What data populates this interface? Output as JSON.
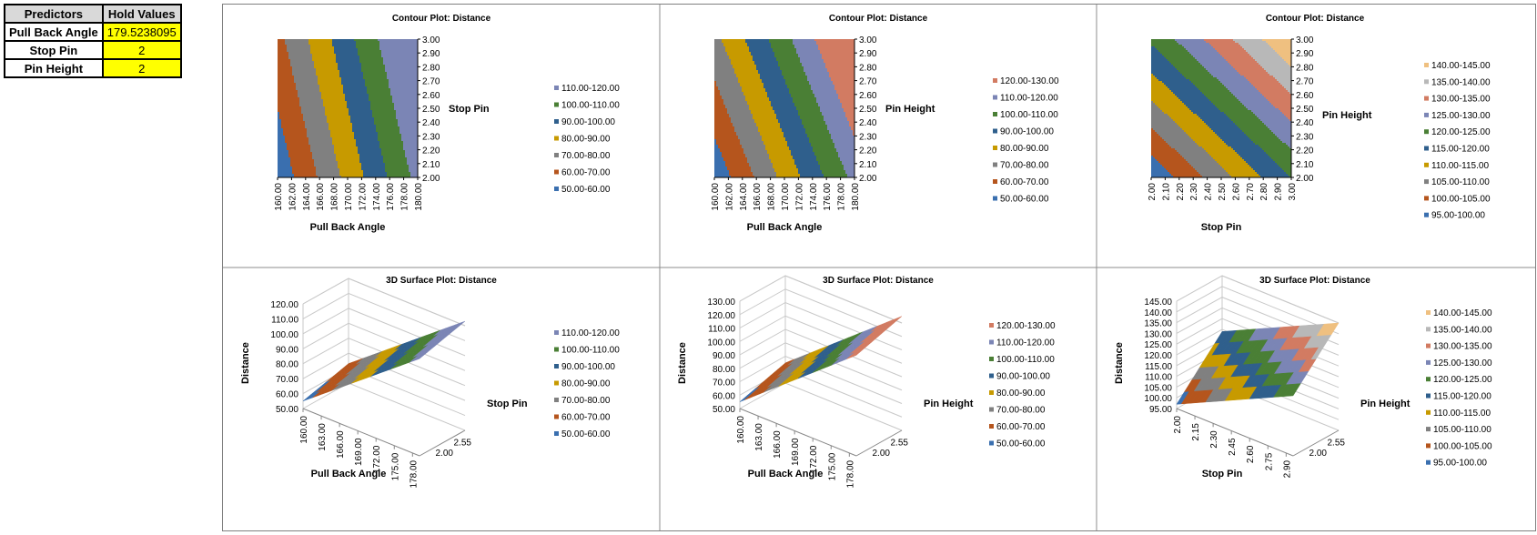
{
  "hold_table": {
    "headers": [
      "Predictors",
      "Hold Values"
    ],
    "rows": [
      {
        "name": "Pull Back Angle",
        "value": "179.5238095"
      },
      {
        "name": "Stop Pin",
        "value": "2"
      },
      {
        "name": "Pin Height",
        "value": "2"
      }
    ]
  },
  "colors": {
    "band_blue": "#3a6faf",
    "band_orange": "#b5551d",
    "band_gray": "#808080",
    "band_gold": "#c79a00",
    "band_teal": "#2f5f8c",
    "band_green": "#4a7f35",
    "band_lilac": "#7b85b5",
    "band_salmon": "#d27b62",
    "band_light": "#efc080",
    "band_silver": "#b8b8b8"
  },
  "chart_data": [
    {
      "type": "heatmap",
      "title": "Contour Plot: Distance",
      "xlabel": "Pull Back Angle",
      "ylabel": "Stop Pin",
      "x_ticks": [
        "160.00",
        "162.00",
        "164.00",
        "166.00",
        "168.00",
        "170.00",
        "172.00",
        "174.00",
        "176.00",
        "178.00",
        "180.00"
      ],
      "y_ticks": [
        "2.00",
        "2.10",
        "2.20",
        "2.30",
        "2.40",
        "2.50",
        "2.60",
        "2.70",
        "2.80",
        "2.90",
        "3.00"
      ],
      "xlim": [
        160,
        180
      ],
      "ylim": [
        2,
        3
      ],
      "legend": [
        "110.00-120.00",
        "100.00-110.00",
        "90.00-100.00",
        "80.00-90.00",
        "70.00-80.00",
        "60.00-70.00",
        "50.00-60.00"
      ],
      "band_colors": [
        "#7b85b5",
        "#4a7f35",
        "#2f5f8c",
        "#c79a00",
        "#808080",
        "#b5551d",
        "#3a6faf"
      ]
    },
    {
      "type": "heatmap",
      "title": "Contour Plot: Distance",
      "xlabel": "Pull Back Angle",
      "ylabel": "Pin Height",
      "x_ticks": [
        "160.00",
        "162.00",
        "164.00",
        "166.00",
        "168.00",
        "170.00",
        "172.00",
        "174.00",
        "176.00",
        "178.00",
        "180.00"
      ],
      "y_ticks": [
        "2.00",
        "2.10",
        "2.20",
        "2.30",
        "2.40",
        "2.50",
        "2.60",
        "2.70",
        "2.80",
        "2.90",
        "3.00"
      ],
      "xlim": [
        160,
        180
      ],
      "ylim": [
        2,
        3
      ],
      "legend": [
        "120.00-130.00",
        "110.00-120.00",
        "100.00-110.00",
        "90.00-100.00",
        "80.00-90.00",
        "70.00-80.00",
        "60.00-70.00",
        "50.00-60.00"
      ],
      "band_colors": [
        "#d27b62",
        "#7b85b5",
        "#4a7f35",
        "#2f5f8c",
        "#c79a00",
        "#808080",
        "#b5551d",
        "#3a6faf"
      ]
    },
    {
      "type": "heatmap",
      "title": "Contour Plot: Distance",
      "xlabel": "Stop Pin",
      "ylabel": "Pin Height",
      "x_ticks": [
        "2.00",
        "2.10",
        "2.20",
        "2.30",
        "2.40",
        "2.50",
        "2.60",
        "2.70",
        "2.80",
        "2.90",
        "3.00"
      ],
      "y_ticks": [
        "2.00",
        "2.10",
        "2.20",
        "2.30",
        "2.40",
        "2.50",
        "2.60",
        "2.70",
        "2.80",
        "2.90",
        "3.00"
      ],
      "xlim": [
        2,
        3
      ],
      "ylim": [
        2,
        3
      ],
      "legend": [
        "140.00-145.00",
        "135.00-140.00",
        "130.00-135.00",
        "125.00-130.00",
        "120.00-125.00",
        "115.00-120.00",
        "110.00-115.00",
        "105.00-110.00",
        "100.00-105.00",
        "95.00-100.00"
      ],
      "band_colors": [
        "#efc080",
        "#b8b8b8",
        "#d27b62",
        "#7b85b5",
        "#4a7f35",
        "#2f5f8c",
        "#c79a00",
        "#808080",
        "#b5551d",
        "#3a6faf"
      ]
    },
    {
      "type": "area",
      "title": "3D Surface Plot: Distance",
      "xlabel": "Pull Back Angle",
      "ylabel": "Stop Pin",
      "zlabel": "Distance",
      "x_ticks": [
        "160.00",
        "163.00",
        "166.00",
        "169.00",
        "172.00",
        "175.00",
        "178.00"
      ],
      "y_ticks": [
        "2.00",
        "2.55"
      ],
      "z_ticks": [
        "50.00",
        "60.00",
        "70.00",
        "80.00",
        "90.00",
        "100.00",
        "110.00",
        "120.00"
      ],
      "zlim": [
        50,
        120
      ],
      "legend": [
        "110.00-120.00",
        "100.00-110.00",
        "90.00-100.00",
        "80.00-90.00",
        "70.00-80.00",
        "60.00-70.00",
        "50.00-60.00"
      ],
      "band_colors": [
        "#7b85b5",
        "#4a7f35",
        "#2f5f8c",
        "#c79a00",
        "#808080",
        "#b5551d",
        "#3a6faf"
      ]
    },
    {
      "type": "area",
      "title": "3D Surface Plot: Distance",
      "xlabel": "Pull Back Angle",
      "ylabel": "Pin Height",
      "zlabel": "Distance",
      "x_ticks": [
        "160.00",
        "163.00",
        "166.00",
        "169.00",
        "172.00",
        "175.00",
        "178.00"
      ],
      "y_ticks": [
        "2.00",
        "2.55"
      ],
      "z_ticks": [
        "50.00",
        "60.00",
        "70.00",
        "80.00",
        "90.00",
        "100.00",
        "110.00",
        "120.00",
        "130.00"
      ],
      "zlim": [
        50,
        130
      ],
      "legend": [
        "120.00-130.00",
        "110.00-120.00",
        "100.00-110.00",
        "90.00-100.00",
        "80.00-90.00",
        "70.00-80.00",
        "60.00-70.00",
        "50.00-60.00"
      ],
      "band_colors": [
        "#d27b62",
        "#7b85b5",
        "#4a7f35",
        "#2f5f8c",
        "#c79a00",
        "#808080",
        "#b5551d",
        "#3a6faf"
      ]
    },
    {
      "type": "area",
      "title": "3D Surface Plot: Distance",
      "xlabel": "Stop Pin",
      "ylabel": "Pin Height",
      "zlabel": "Distance",
      "x_ticks": [
        "2.00",
        "2.15",
        "2.30",
        "2.45",
        "2.60",
        "2.75",
        "2.90"
      ],
      "y_ticks": [
        "2.00",
        "2.55"
      ],
      "z_ticks": [
        "95.00",
        "100.00",
        "105.00",
        "110.00",
        "115.00",
        "120.00",
        "125.00",
        "130.00",
        "135.00",
        "140.00",
        "145.00"
      ],
      "zlim": [
        95,
        145
      ],
      "legend": [
        "140.00-145.00",
        "135.00-140.00",
        "130.00-135.00",
        "125.00-130.00",
        "120.00-125.00",
        "115.00-120.00",
        "110.00-115.00",
        "105.00-110.00",
        "100.00-105.00",
        "95.00-100.00"
      ],
      "band_colors": [
        "#efc080",
        "#b8b8b8",
        "#d27b62",
        "#7b85b5",
        "#4a7f35",
        "#2f5f8c",
        "#c79a00",
        "#808080",
        "#b5551d",
        "#3a6faf"
      ]
    }
  ]
}
